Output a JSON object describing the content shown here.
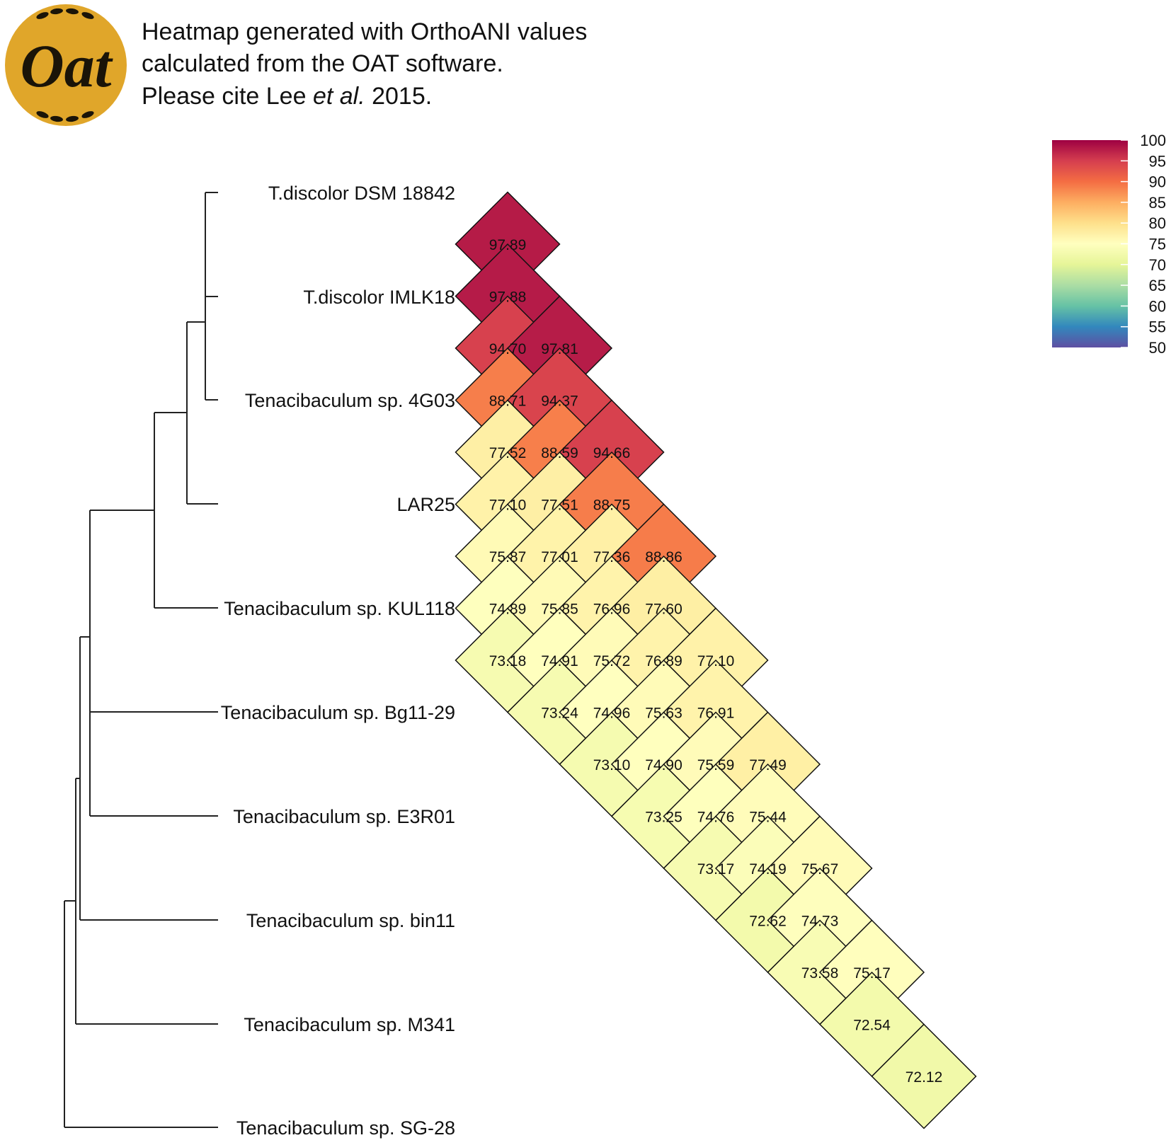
{
  "logo": {
    "text": "Oat",
    "bg": "#e0a62a",
    "fg": "#1a1408"
  },
  "caption": {
    "line1": "Heatmap generated with OrthoANI values",
    "line2": "calculated from the OAT software.",
    "line3_pre": "Please cite Lee ",
    "line3_italic": "et al.",
    "line3_post": " 2015."
  },
  "chart_data": {
    "type": "heatmap",
    "title": "Heatmap generated with OrthoANI values calculated from the OAT software.",
    "taxa": [
      "T.discolor DSM 18842",
      "T.discolor IMLK18",
      "Tenacibaculum sp. 4G03",
      "LAR25",
      "Tenacibaculum sp. KUL118",
      "Tenacibaculum sp. Bg11-29",
      "Tenacibaculum sp. E3R01",
      "Tenacibaculum sp. bin11",
      "Tenacibaculum sp. M341",
      "Tenacibaculum sp. SG-28"
    ],
    "matrix": [
      [
        null,
        "97.89",
        "97.88",
        "94.70",
        "88.71",
        "77.52",
        "77.10",
        "75.87",
        "74.89",
        "73.18"
      ],
      [
        "97.89",
        null,
        "97.81",
        "94.37",
        "88.59",
        "77.51",
        "77.01",
        "75.85",
        "74.91",
        "73.24"
      ],
      [
        "97.88",
        "97.81",
        null,
        "94.66",
        "88.75",
        "77.36",
        "76.96",
        "75.72",
        "74.96",
        "73.10"
      ],
      [
        "94.70",
        "94.37",
        "94.66",
        null,
        "88.86",
        "77.60",
        "76.89",
        "75.63",
        "74.90",
        "73.25"
      ],
      [
        "88.71",
        "88.59",
        "88.75",
        "88.86",
        null,
        "77.10",
        "76.91",
        "75.59",
        "74.76",
        "73.17"
      ],
      [
        "77.52",
        "77.51",
        "77.36",
        "77.60",
        "77.10",
        null,
        "77.49",
        "75.44",
        "74.19",
        "72.62"
      ],
      [
        "77.10",
        "77.01",
        "76.96",
        "76.89",
        "76.91",
        "77.49",
        null,
        "75.67",
        "74.73",
        "73.58"
      ],
      [
        "75.87",
        "75.85",
        "75.72",
        "75.63",
        "75.59",
        "75.44",
        "75.67",
        null,
        "75.17",
        "72.54"
      ],
      [
        "74.89",
        "74.91",
        "74.96",
        "74.90",
        "74.76",
        "74.19",
        "74.73",
        "75.17",
        null,
        "72.12"
      ],
      [
        "73.18",
        "73.24",
        "73.10",
        "73.25",
        "73.17",
        "72.62",
        "73.58",
        "72.54",
        "72.12",
        null
      ]
    ],
    "colorbar": {
      "range": [
        50,
        100
      ],
      "ticks": [
        "100",
        "95",
        "90",
        "85",
        "80",
        "75",
        "70",
        "65",
        "60",
        "55",
        "50"
      ],
      "colors": [
        "#5e4fa2",
        "#3288bd",
        "#66c2a5",
        "#abdda4",
        "#e6f598",
        "#ffffbf",
        "#fee08b",
        "#fdae61",
        "#f46d43",
        "#d53e4f",
        "#9e0142"
      ]
    }
  }
}
